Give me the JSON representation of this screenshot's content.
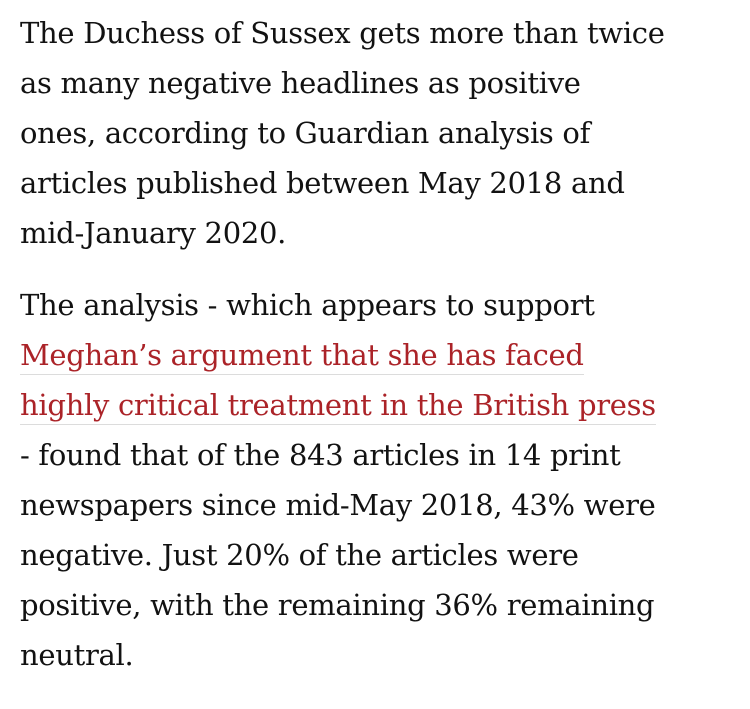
{
  "paragraphs": [
    {
      "lines": [
        "The Duchess of Sussex gets more than twice",
        "as many negative headlines as positive",
        "ones, according to Guardian analysis of",
        "articles published between May 2018 and",
        "mid-January 2020."
      ]
    },
    {
      "before": "The analysis - which appears to support",
      "link": [
        "Meghan’s argument that she has faced",
        "highly critical treatment in the British press"
      ],
      "after": [
        "- found that of the 843 articles in 14 print",
        "newspapers since mid-May 2018, 43% were",
        "negative. Just 20% of the articles were",
        "positive, with the remaining 36% remaining",
        "neutral."
      ]
    }
  ]
}
